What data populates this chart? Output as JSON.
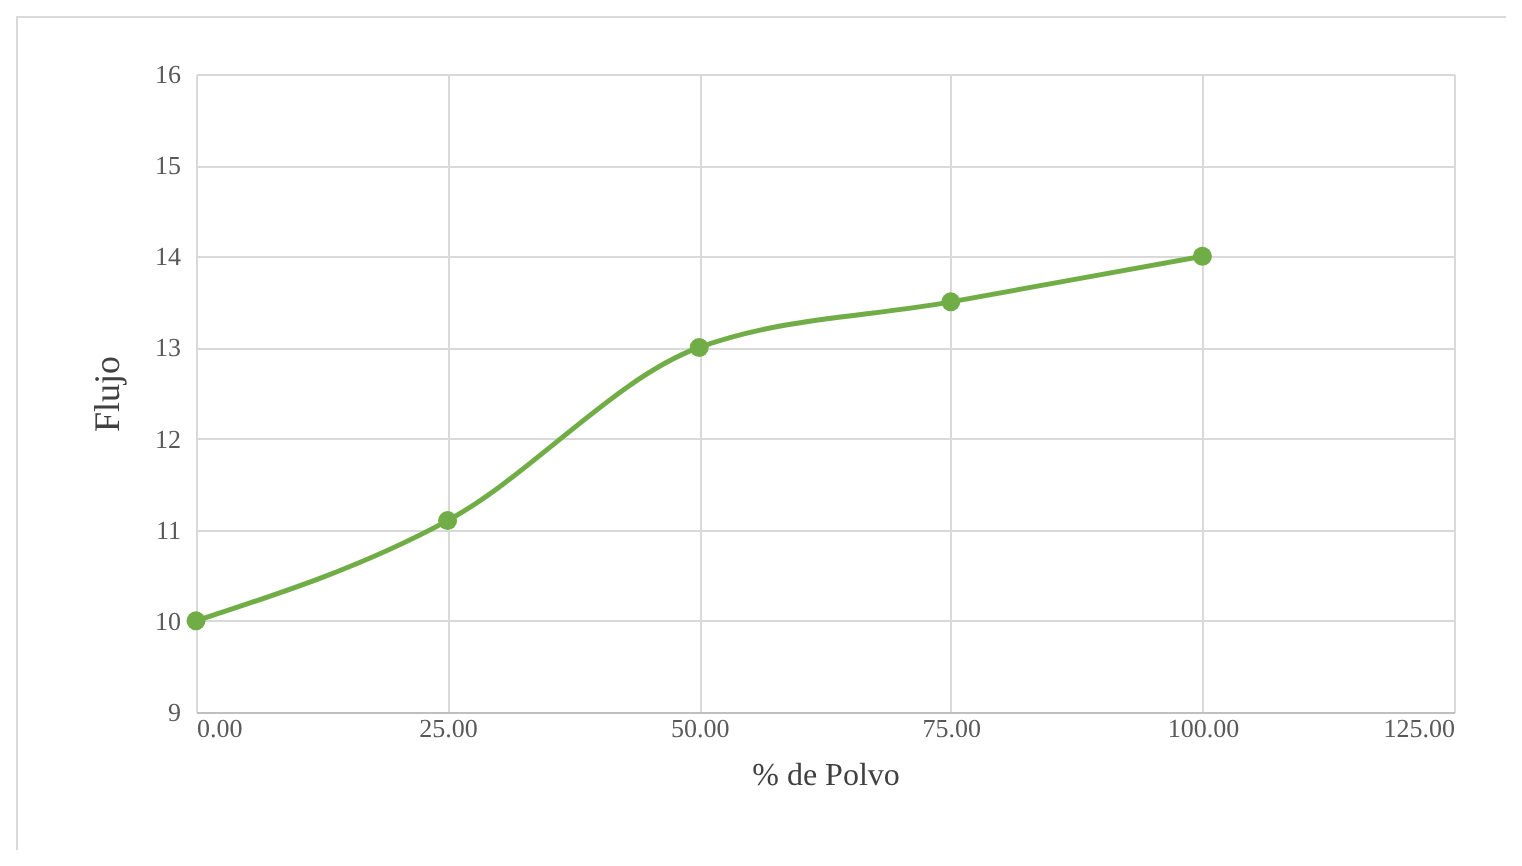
{
  "chart_data": {
    "type": "line",
    "xlabel": "% de Polvo",
    "ylabel": "Flujo",
    "x": [
      0,
      25,
      50,
      75,
      100
    ],
    "series": [
      {
        "color": "#70ad47",
        "values": [
          10,
          11.1,
          13,
          13.5,
          14
        ]
      }
    ],
    "xlim": [
      0,
      125
    ],
    "xticks": [
      {
        "value": 0,
        "label": "0.00"
      },
      {
        "value": 25,
        "label": "25.00"
      },
      {
        "value": 50,
        "label": "50.00"
      },
      {
        "value": 75,
        "label": "75.00"
      },
      {
        "value": 100,
        "label": "100.00"
      },
      {
        "value": 125,
        "label": "125.00"
      }
    ],
    "ylim": [
      9,
      16
    ],
    "yticks": [
      9,
      10,
      11,
      12,
      13,
      14,
      15,
      16
    ],
    "grid": true,
    "marker": "circle",
    "line_style": "solid"
  }
}
